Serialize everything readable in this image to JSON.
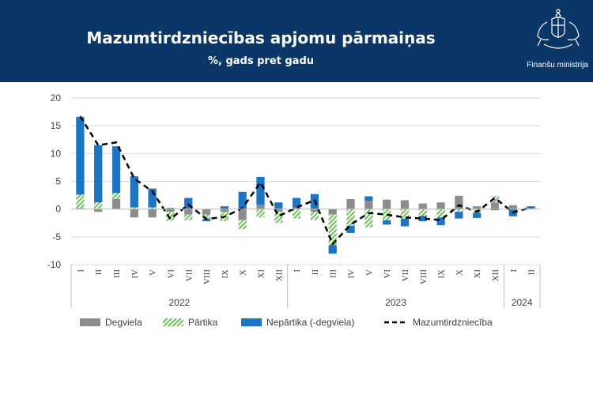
{
  "header": {
    "title": "Mazumtirdzniecības apjomu pārmaiņas",
    "subtitle": "%, gads pret gadu",
    "ministry": "Finanšu ministrija"
  },
  "colors": {
    "header_bg": "#0b3668",
    "fuel": "#8c8c8c",
    "food": "#70c05a",
    "nonfood": "#1b75c4",
    "line": "#000000"
  },
  "chart_data": {
    "type": "bar",
    "stacked": true,
    "categories": [
      "I",
      "II",
      "III",
      "IV",
      "V",
      "VI",
      "VII",
      "VIII",
      "IX",
      "X",
      "XI",
      "XII",
      "I",
      "II",
      "III",
      "IV",
      "V",
      "VI",
      "VII",
      "VIII",
      "IX",
      "X",
      "XI",
      "XII",
      "I",
      "II"
    ],
    "groups": [
      {
        "label": "2022",
        "count": 12
      },
      {
        "label": "2023",
        "count": 12
      },
      {
        "label": "2024",
        "count": 2
      }
    ],
    "series": [
      {
        "name": "Degviela",
        "values": [
          0.2,
          -0.5,
          1.8,
          -1.5,
          -1.5,
          -0.5,
          -1.0,
          -1.0,
          -0.5,
          -2.0,
          0.8,
          -0.5,
          0.3,
          -0.5,
          -1.0,
          1.8,
          1.5,
          1.7,
          1.6,
          1.0,
          1.2,
          2.4,
          0.5,
          1.2,
          0.7,
          0.2
        ]
      },
      {
        "name": "Pārtika",
        "values": [
          2.4,
          1.2,
          1.1,
          0.3,
          0.3,
          -1.6,
          -1.0,
          -0.8,
          -1.7,
          -1.6,
          -1.5,
          -2.0,
          -1.7,
          -1.5,
          -5.5,
          -3.0,
          -3.3,
          -2.0,
          -1.7,
          -1.2,
          -1.5,
          -0.5,
          -0.7,
          1.2,
          0.0,
          0.0
        ]
      },
      {
        "name": "Nepārtika (-degviela)",
        "values": [
          14.0,
          10.3,
          8.4,
          5.6,
          3.4,
          0.2,
          2.0,
          -0.4,
          0.5,
          3.1,
          5.0,
          1.2,
          1.7,
          2.7,
          -1.5,
          -1.3,
          0.8,
          -0.8,
          -1.4,
          -1.0,
          -1.4,
          -1.2,
          -0.9,
          -0.2,
          -1.3,
          0.3
        ]
      },
      {
        "name": "Mazumtirdzniecība",
        "type": "line",
        "values": [
          16.7,
          11.5,
          12.0,
          5.5,
          3.2,
          -1.8,
          0.8,
          -1.8,
          -1.4,
          0.2,
          4.8,
          -1.3,
          0.3,
          1.6,
          -6.3,
          -2.8,
          -0.7,
          -1.0,
          -1.5,
          -1.7,
          -2.0,
          0.7,
          -0.5,
          2.0,
          -0.6,
          0.3
        ]
      }
    ],
    "ylim": [
      -10,
      20
    ],
    "yticks": [
      -10,
      -5,
      0,
      5,
      10,
      15,
      20
    ],
    "grid": true,
    "legend_position": "bottom"
  }
}
